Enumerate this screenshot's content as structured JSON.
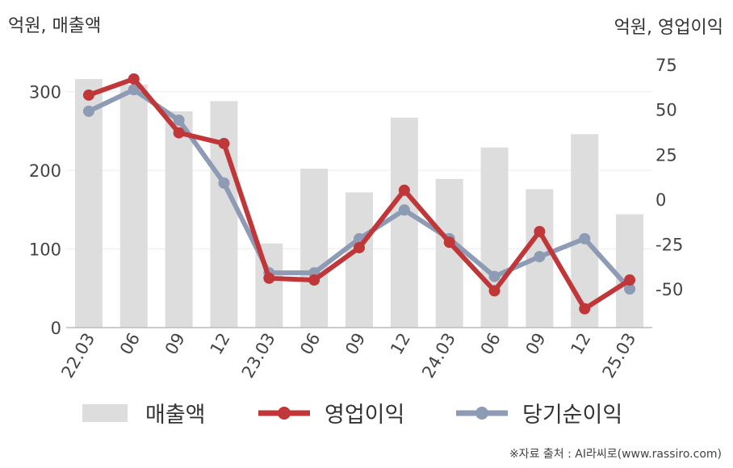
{
  "units": {
    "left": "억원, 매출액",
    "right": "억원, 영업이익"
  },
  "legend": {
    "revenue": "매출액",
    "op_income": "영업이익",
    "net_income": "당기순이익"
  },
  "source": "※자료 출처 : AI라씨로(www.rassiro.com)",
  "colors": {
    "revenue": "#dddddd",
    "op_income": "#c0373a",
    "net_income": "#8e9bb5"
  },
  "chart_data": {
    "type": "bar",
    "categories": [
      "22.03",
      "06",
      "09",
      "12",
      "23.03",
      "06",
      "09",
      "12",
      "24.03",
      "06",
      "09",
      "12",
      "25.03"
    ],
    "series": [
      {
        "name": "매출액",
        "type": "bar",
        "axis": "left",
        "values": [
          316,
          309,
          275,
          288,
          107,
          202,
          172,
          267,
          189,
          229,
          176,
          246,
          144
        ]
      },
      {
        "name": "영업이익",
        "type": "line",
        "axis": "right",
        "values": [
          58,
          67,
          37,
          31,
          -44,
          -45,
          -27,
          5,
          -24,
          -51,
          -18,
          -61,
          -45
        ]
      },
      {
        "name": "당기순이익",
        "type": "line",
        "axis": "right",
        "values": [
          49,
          61,
          44,
          9,
          -41,
          -41,
          -22,
          -6,
          -22,
          -43,
          -32,
          -22,
          -50
        ]
      }
    ],
    "y_left": {
      "ticks": [
        0,
        100,
        200,
        300
      ],
      "range": [
        0,
        355
      ]
    },
    "y_right": {
      "ticks": [
        75,
        50,
        25,
        0,
        -25,
        -50
      ],
      "range": [
        -71.5,
        84
      ]
    },
    "grid": true,
    "legend_position": "bottom"
  }
}
